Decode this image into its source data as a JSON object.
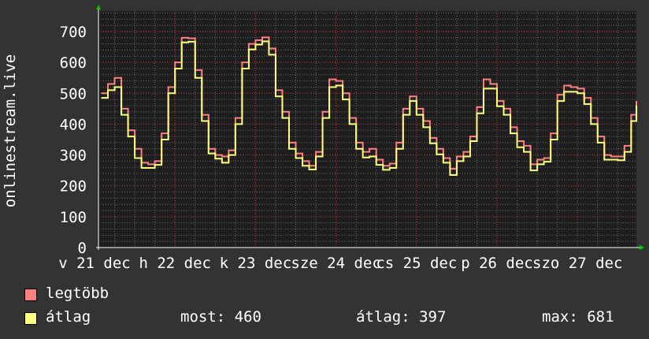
{
  "chart_data": {
    "type": "line",
    "ylabel": "onlinestream.live",
    "ylim": [
      0,
      700
    ],
    "yticks": [
      "0",
      "100",
      "200",
      "300",
      "400",
      "500",
      "600",
      "700"
    ],
    "xtick_labels": [
      "v 21 dec",
      "h 22 dec",
      "k 23 dec",
      "sze 24 dec",
      "cs 25 dec",
      "p 26 dec",
      "szo 27 dec"
    ],
    "xtick_times": [
      "12-21 00:00",
      "12-22 00:00",
      "12-23 00:00",
      "12-24 00:00",
      "12-25 00:00",
      "12-26 00:00",
      "12-27 00:00"
    ],
    "grid": true,
    "legend_placement": "bottom-left",
    "x": [
      "12-21 02:00",
      "12-21 04:00",
      "12-21 06:00",
      "12-21 08:00",
      "12-21 10:00",
      "12-21 12:00",
      "12-21 14:00",
      "12-21 16:00",
      "12-21 18:00",
      "12-21 20:00",
      "12-21 22:00",
      "12-22 00:00",
      "12-22 02:00",
      "12-22 04:00",
      "12-22 06:00",
      "12-22 08:00",
      "12-22 10:00",
      "12-22 12:00",
      "12-22 14:00",
      "12-22 16:00",
      "12-22 18:00",
      "12-22 20:00",
      "12-22 22:00",
      "12-23 00:00",
      "12-23 02:00",
      "12-23 04:00",
      "12-23 06:00",
      "12-23 08:00",
      "12-23 10:00",
      "12-23 12:00",
      "12-23 14:00",
      "12-23 16:00",
      "12-23 18:00",
      "12-23 20:00",
      "12-23 22:00",
      "12-24 00:00",
      "12-24 02:00",
      "12-24 04:00",
      "12-24 06:00",
      "12-24 08:00",
      "12-24 10:00",
      "12-24 12:00",
      "12-24 14:00",
      "12-24 16:00",
      "12-24 18:00",
      "12-24 20:00",
      "12-24 22:00",
      "12-25 00:00",
      "12-25 02:00",
      "12-25 04:00",
      "12-25 06:00",
      "12-25 08:00",
      "12-25 10:00",
      "12-25 12:00",
      "12-25 14:00",
      "12-25 16:00",
      "12-25 18:00",
      "12-25 20:00",
      "12-25 22:00",
      "12-26 00:00",
      "12-26 02:00",
      "12-26 04:00",
      "12-26 06:00",
      "12-26 08:00",
      "12-26 10:00",
      "12-26 12:00",
      "12-26 14:00",
      "12-26 16:00",
      "12-26 18:00",
      "12-26 20:00",
      "12-26 22:00",
      "12-27 00:00",
      "12-27 02:00",
      "12-27 04:00",
      "12-27 06:00",
      "12-27 08:00",
      "12-27 10:00",
      "12-27 12:00",
      "12-27 14:00",
      "12-27 16:00",
      "12-27 18:00"
    ],
    "series": [
      {
        "name": "legtöbb",
        "color": "#ff8080",
        "values": [
          500,
          530,
          550,
          450,
          380,
          320,
          275,
          270,
          280,
          370,
          520,
          600,
          680,
          678,
          575,
          430,
          320,
          300,
          295,
          315,
          420,
          600,
          660,
          672,
          681,
          645,
          510,
          440,
          340,
          305,
          280,
          265,
          310,
          440,
          545,
          540,
          500,
          420,
          340,
          310,
          320,
          285,
          265,
          272,
          340,
          450,
          490,
          450,
          410,
          355,
          320,
          290,
          255,
          295,
          310,
          360,
          455,
          545,
          530,
          475,
          450,
          390,
          345,
          330,
          270,
          285,
          290,
          370,
          495,
          525,
          520,
          515,
          485,
          420,
          360,
          300,
          295,
          295,
          330,
          430,
          475
        ]
      },
      {
        "name": "átlag",
        "color": "#ffff80",
        "values": [
          485,
          510,
          520,
          430,
          360,
          290,
          258,
          258,
          268,
          350,
          500,
          580,
          665,
          667,
          550,
          410,
          305,
          288,
          275,
          300,
          400,
          580,
          642,
          658,
          668,
          625,
          490,
          420,
          320,
          290,
          265,
          253,
          295,
          420,
          520,
          525,
          480,
          400,
          320,
          292,
          295,
          268,
          252,
          258,
          320,
          430,
          475,
          430,
          390,
          338,
          302,
          275,
          235,
          280,
          295,
          345,
          435,
          515,
          515,
          458,
          430,
          370,
          325,
          310,
          250,
          270,
          278,
          350,
          475,
          505,
          505,
          500,
          465,
          400,
          340,
          285,
          285,
          283,
          310,
          410,
          460
        ]
      }
    ]
  },
  "legend": {
    "items": [
      {
        "label": "legtöbb",
        "color": "#ff8080"
      },
      {
        "label": "átlag",
        "color": "#ffff80"
      }
    ],
    "most": "most: 460",
    "atlag": "átlag: 397",
    "max": "max: 681"
  },
  "colors": {
    "background": "#333333",
    "plot_background": "#1e1e1e",
    "major_grid": "#c04040",
    "minor_grid": "#6a6a6a",
    "axis_arrow": "#00cc00"
  }
}
